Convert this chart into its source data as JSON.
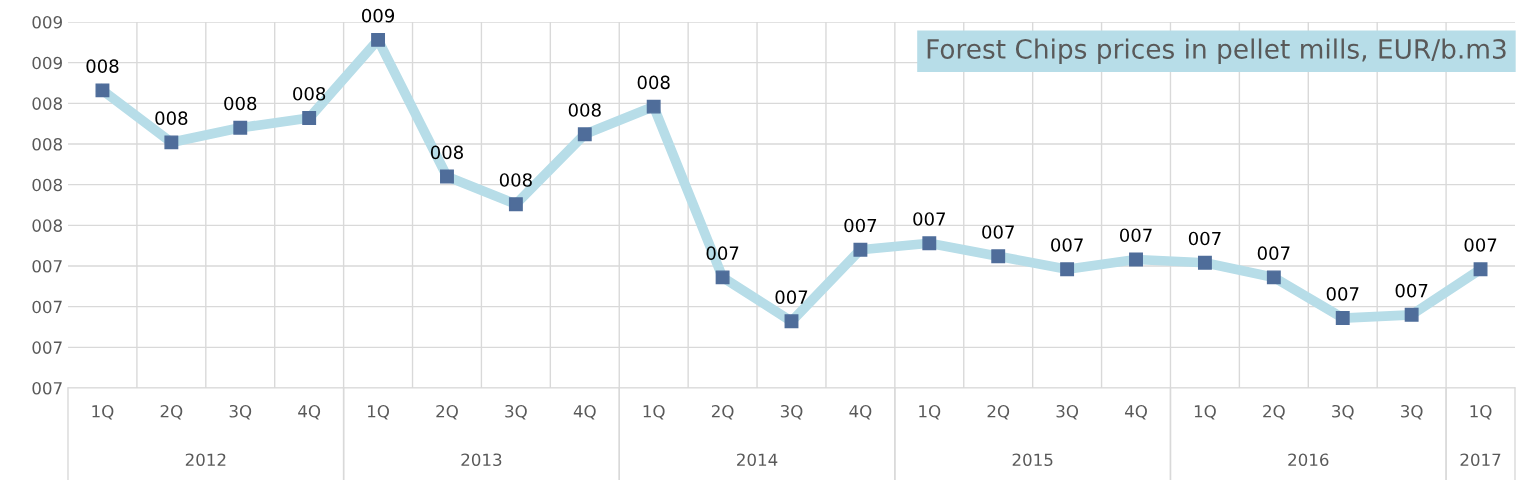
{
  "chart_data": {
    "type": "line",
    "title": "Forest Chips prices in pellet mills, EUR/b.m3",
    "categories": [
      "1Q",
      "2Q",
      "3Q",
      "4Q",
      "1Q",
      "2Q",
      "3Q",
      "4Q",
      "1Q",
      "2Q",
      "3Q",
      "4Q",
      "1Q",
      "2Q",
      "3Q",
      "4Q",
      "1Q",
      "2Q",
      "3Q",
      "3Q",
      "1Q"
    ],
    "series": [
      {
        "color": "#b7dde8",
        "values": [
          8.33,
          8.01,
          8.1,
          8.16,
          8.64,
          7.8,
          7.63,
          8.06,
          8.23,
          7.18,
          6.91,
          7.35,
          7.39,
          7.31,
          7.23,
          7.29,
          7.27,
          7.18,
          6.93,
          6.95,
          7.23
        ],
        "value_labels": [
          "008",
          "008",
          "008",
          "008",
          "009",
          "008",
          "008",
          "008",
          "008",
          "007",
          "007",
          "007",
          "007",
          "007",
          "007",
          "007",
          "007",
          "007",
          "007",
          "007",
          "007"
        ]
      }
    ],
    "annotations": [
      "2012",
      "2013",
      "2014",
      "2015",
      "2016",
      "2017"
    ],
    "ylim": [
      6.5,
      8.75
    ],
    "yticks": [
      {
        "value": 6.5,
        "label": "007"
      },
      {
        "value": 6.75,
        "label": "007"
      },
      {
        "value": 7.0,
        "label": "007"
      },
      {
        "value": 7.25,
        "label": "007"
      },
      {
        "value": 7.5,
        "label": "008"
      },
      {
        "value": 7.75,
        "label": "008"
      },
      {
        "value": 8.0,
        "label": "008"
      },
      {
        "value": 8.25,
        "label": "008"
      },
      {
        "value": 8.5,
        "label": "009"
      },
      {
        "value": 8.75,
        "label": "009"
      }
    ],
    "grid": true,
    "marker": "square",
    "line_style": "solid"
  }
}
